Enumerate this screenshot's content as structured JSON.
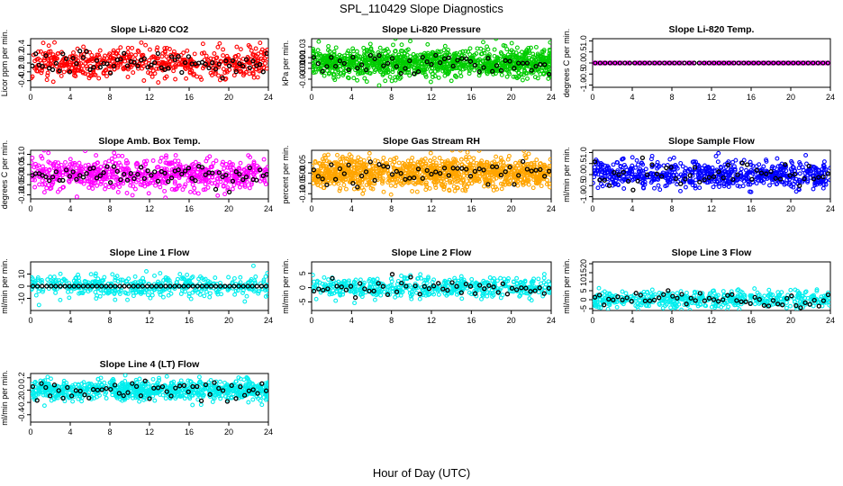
{
  "figure": {
    "title": "SPL_110429  Slope Diagnostics",
    "xlabel": "Hour of Day (UTC)"
  },
  "chart_data": [
    {
      "type": "scatter",
      "title": "Slope Li-820 CO2",
      "ylabel": "Licor ppm per min.",
      "color": "#ff0000",
      "xlim": [
        0,
        24
      ],
      "xticks": [
        0,
        4,
        8,
        12,
        16,
        20,
        24
      ],
      "ylim": [
        -0.55,
        0.55
      ],
      "yticks": [
        -0.4,
        -0.2,
        0.0,
        0.2,
        0.4
      ],
      "ytick_labels": [
        "-0.4",
        "-0.2",
        "0.0",
        "0.2",
        "0.4"
      ],
      "cloud": {
        "n": 550,
        "center": 0.0,
        "spread": 0.17,
        "max": 0.52
      },
      "highlight": {
        "color": "#000000",
        "n": 70,
        "spread": 0.13
      },
      "black_points": []
    },
    {
      "type": "scatter",
      "title": "Slope Li-820 Pressure",
      "ylabel": "kPa per min.",
      "color": "#00cc00",
      "xlim": [
        0,
        24
      ],
      "xticks": [
        0,
        4,
        8,
        12,
        16,
        20,
        24
      ],
      "ylim": [
        -0.045,
        0.045
      ],
      "yticks": [
        -0.03,
        -0.01,
        0.0,
        0.01,
        0.03
      ],
      "ytick_labels": [
        "-0.03",
        "-0.01",
        "0.00",
        "0.01",
        "0.03"
      ],
      "cloud": {
        "n": 1100,
        "center": 0.0,
        "spread": 0.013,
        "max": 0.045
      },
      "highlight": {
        "color": "#000000",
        "n": 55,
        "spread": 0.01
      },
      "black_points": []
    },
    {
      "type": "scatter",
      "title": "Slope Li-820 Temp.",
      "ylabel": "degrees C per min.",
      "color": "#ff00ff",
      "xlim": [
        0,
        24
      ],
      "xticks": [
        0,
        4,
        8,
        12,
        16,
        20,
        24
      ],
      "ylim": [
        -1.1,
        1.1
      ],
      "yticks": [
        -1.0,
        -0.5,
        0.0,
        0.5,
        1.0
      ],
      "ytick_labels": [
        "-1.0",
        "-0.5",
        "0.0",
        "0.5",
        "1.0"
      ],
      "cloud": {
        "n": 300,
        "center": 0.0,
        "spread": 0.0,
        "max": 1.1
      },
      "highlight": {
        "color": "#000000",
        "n": 48,
        "spread": 0.0
      },
      "black_points": []
    },
    {
      "type": "scatter",
      "title": "Slope Amb. Box Temp.",
      "ylabel": "degrees C per min.",
      "color": "#ff00ff",
      "xlim": [
        0,
        24
      ],
      "xticks": [
        0,
        4,
        8,
        12,
        16,
        20,
        24
      ],
      "ylim": [
        -0.12,
        0.12
      ],
      "yticks": [
        -0.1,
        -0.05,
        0.0,
        0.05,
        0.1
      ],
      "ytick_labels": [
        "-0.10",
        "-0.05",
        "0.00",
        "0.05",
        "0.10"
      ],
      "cloud": {
        "n": 700,
        "center": 0.0,
        "spread": 0.04,
        "max": 0.12
      },
      "highlight": {
        "color": "#000000",
        "n": 70,
        "spread": 0.025
      },
      "black_points": []
    },
    {
      "type": "scatter",
      "title": "Slope Gas Stream RH",
      "ylabel": "percent per min.",
      "color": "#ffa500",
      "xlim": [
        0,
        24
      ],
      "xticks": [
        0,
        4,
        8,
        12,
        16,
        20,
        24
      ],
      "ylim": [
        -0.125,
        0.11
      ],
      "yticks": [
        -0.1,
        -0.05,
        0.0,
        0.05
      ],
      "ytick_labels": [
        "-0.10",
        "-0.05",
        "0.00",
        "0.05"
      ],
      "cloud": {
        "n": 1100,
        "center": 0.0,
        "spread": 0.035,
        "max": 0.11
      },
      "highlight": {
        "color": "#000000",
        "n": 55,
        "spread": 0.03
      },
      "black_points": []
    },
    {
      "type": "scatter",
      "title": "Slope Sample Flow",
      "ylabel": "ml/min per min.",
      "color": "#0000ff",
      "xlim": [
        0,
        24
      ],
      "xticks": [
        0,
        4,
        8,
        12,
        16,
        20,
        24
      ],
      "ylim": [
        -1.1,
        1.1
      ],
      "yticks": [
        -1.0,
        -0.5,
        0.0,
        0.5,
        1.0
      ],
      "ytick_labels": [
        "-1.0",
        "-0.5",
        "0.0",
        "0.5",
        "1.0"
      ],
      "cloud": {
        "n": 700,
        "center": 0.0,
        "spread": 0.3,
        "max": 1.0
      },
      "highlight": {
        "color": "#000000",
        "n": 50,
        "spread": 0.3
      },
      "black_points": []
    },
    {
      "type": "scatter",
      "title": "Slope Line 1 Flow",
      "ylabel": "ml/min per min.",
      "color": "#00eeee",
      "xlim": [
        0,
        24
      ],
      "xticks": [
        0,
        4,
        8,
        12,
        16,
        20,
        24
      ],
      "ylim": [
        -20,
        20
      ],
      "yticks": [
        -10,
        0,
        10
      ],
      "ytick_labels": [
        "-10",
        "0",
        "10"
      ],
      "cloud": {
        "n": 450,
        "center": 0.0,
        "spread": 4.5,
        "max": 18
      },
      "highlight": {
        "color": "#000000",
        "n": 52,
        "spread": 0.0
      },
      "black_points": []
    },
    {
      "type": "scatter",
      "title": "Slope Line 2 Flow",
      "ylabel": "ml/min per min.",
      "color": "#00eeee",
      "xlim": [
        0,
        24
      ],
      "xticks": [
        0,
        4,
        8,
        12,
        16,
        20,
        24
      ],
      "ylim": [
        -8,
        9
      ],
      "yticks": [
        -5,
        0,
        5
      ],
      "ytick_labels": [
        "-5",
        "0",
        "5"
      ],
      "cloud": {
        "n": 500,
        "center": 0.0,
        "spread": 1.7,
        "max": 8.5
      },
      "highlight": {
        "color": "#000000",
        "n": 52,
        "spread": 1.6
      },
      "black_points": []
    },
    {
      "type": "scatter",
      "title": "Slope Line 3 Flow",
      "ylabel": "ml/min per min.",
      "color": "#00eeee",
      "xlim": [
        0,
        24
      ],
      "xticks": [
        0,
        4,
        8,
        12,
        16,
        20,
        24
      ],
      "ylim": [
        -6,
        21
      ],
      "yticks": [
        -5,
        0,
        5,
        10,
        15,
        20
      ],
      "ytick_labels": [
        "-5",
        "0",
        "5",
        "10",
        "15",
        "20"
      ],
      "cloud": {
        "n": 500,
        "center": 0.0,
        "spread": 2.3,
        "max": 20
      },
      "highlight": {
        "color": "#000000",
        "n": 52,
        "spread": 2.0
      },
      "black_points": []
    },
    {
      "type": "scatter",
      "title": "Slope Line 4 (LT) Flow",
      "ylabel": "ml/min per min.",
      "color": "#00eeee",
      "xlim": [
        0,
        24
      ],
      "xticks": [
        0,
        4,
        8,
        12,
        16,
        20,
        24
      ],
      "ylim": [
        -0.52,
        0.27
      ],
      "yticks": [
        -0.4,
        -0.2,
        0.0,
        0.2
      ],
      "ytick_labels": [
        "-0.4",
        "-0.2",
        "0.0",
        "0.2"
      ],
      "cloud": {
        "n": 800,
        "center": 0.0,
        "spread": 0.08,
        "max": 0.26
      },
      "highlight": {
        "color": "#000000",
        "n": 55,
        "spread": 0.08
      },
      "black_points": []
    }
  ]
}
